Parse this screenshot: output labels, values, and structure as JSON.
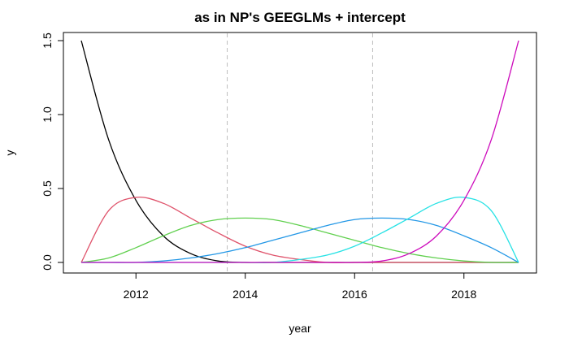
{
  "chart_data": {
    "type": "line",
    "title": "as in NP's GEEGLMs + intercept",
    "xlabel": "year",
    "ylabel": "y",
    "xlim": [
      2011,
      2019
    ],
    "ylim": [
      0,
      1.5
    ],
    "x_ticks": [
      2012,
      2014,
      2016,
      2018
    ],
    "x_tick_labels": [
      "2012",
      "2014",
      "2016",
      "2018"
    ],
    "y_ticks": [
      0.0,
      0.5,
      1.0,
      1.5
    ],
    "y_tick_labels": [
      "0.0",
      "0.5",
      "1.0",
      "1.5"
    ],
    "vertical_lines": [
      2013.67,
      2016.33
    ],
    "grid": false,
    "x": [
      2011,
      2011.5,
      2012,
      2012.5,
      2013,
      2013.5,
      2014,
      2014.5,
      2015,
      2015.5,
      2016,
      2016.5,
      2017,
      2017.5,
      2018,
      2018.5,
      2019
    ],
    "series": [
      {
        "color": "#000000",
        "values": [
          1.5,
          0.83,
          0.42,
          0.18,
          0.06,
          0.01,
          0,
          0,
          0,
          0,
          0,
          0,
          0,
          0,
          0,
          0,
          0
        ]
      },
      {
        "color": "#DF536B",
        "values": [
          0,
          0.35,
          0.44,
          0.4,
          0.3,
          0.2,
          0.11,
          0.05,
          0.02,
          0,
          0,
          0,
          0,
          0,
          0,
          0,
          0
        ]
      },
      {
        "color": "#61D04F",
        "values": [
          0,
          0.03,
          0.1,
          0.18,
          0.25,
          0.29,
          0.3,
          0.29,
          0.25,
          0.2,
          0.15,
          0.1,
          0.06,
          0.03,
          0.01,
          0,
          0
        ]
      },
      {
        "color": "#2297E6",
        "values": [
          0,
          0,
          0,
          0.01,
          0.03,
          0.06,
          0.1,
          0.15,
          0.2,
          0.25,
          0.29,
          0.3,
          0.29,
          0.25,
          0.18,
          0.1,
          0
        ]
      },
      {
        "color": "#28E2E5",
        "values": [
          0,
          0,
          0,
          0,
          0,
          0,
          0,
          0,
          0.02,
          0.05,
          0.11,
          0.2,
          0.3,
          0.4,
          0.44,
          0.35,
          0
        ]
      },
      {
        "color": "#CD0BBC",
        "values": [
          0,
          0,
          0,
          0,
          0,
          0,
          0,
          0,
          0,
          0,
          0,
          0.01,
          0.06,
          0.18,
          0.42,
          0.83,
          1.5
        ]
      }
    ]
  }
}
